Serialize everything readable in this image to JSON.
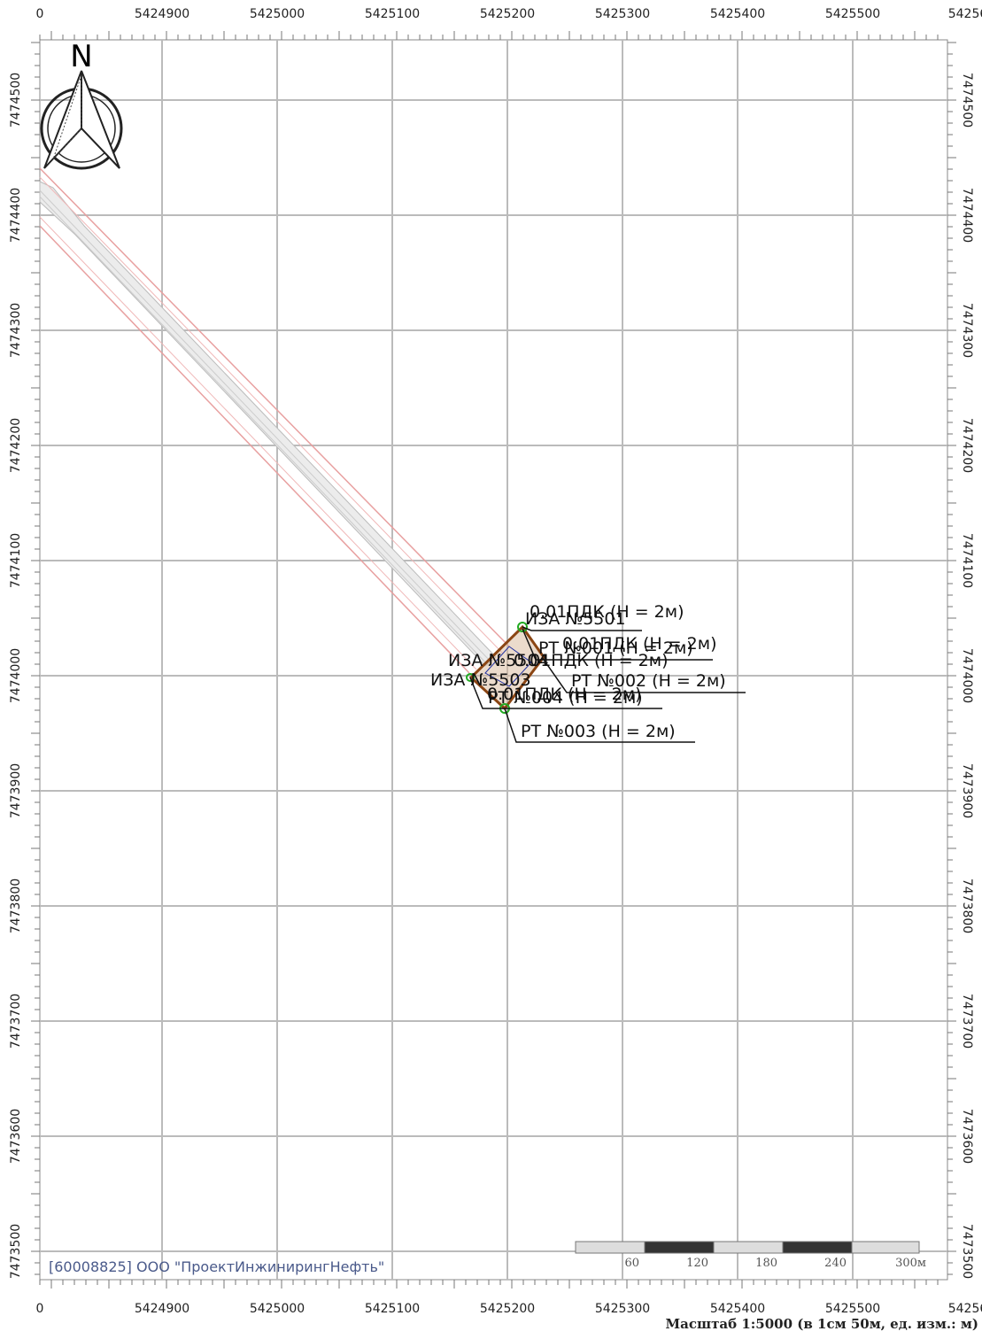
{
  "frame": {
    "x_labels_top": [
      "0",
      "5424900",
      "5425000",
      "5425100",
      "5425200",
      "5425300",
      "5425400",
      "5425500",
      "54256"
    ],
    "x_labels_bottom": [
      "0",
      "5424900",
      "5425000",
      "5425100",
      "5425200",
      "5425300",
      "5425400",
      "5425500",
      "54256"
    ],
    "y_labels_left": [
      "7474500",
      "7474400",
      "7474300",
      "7474200",
      "7474100",
      "7474000",
      "7473900",
      "7473800",
      "7473700",
      "7473600",
      "7473500"
    ],
    "y_labels_right": [
      "7474500",
      "7474400",
      "7474300",
      "7474200",
      "7474100",
      "7474000",
      "7473900",
      "7473800",
      "7473700",
      "7473600",
      "7473500"
    ]
  },
  "compass": {
    "label": "N"
  },
  "map_labels": [
    "0.01ПДК (Н = 2м)",
    "ИЗА №5501",
    "РТ №001 (Н = 2м)",
    "0.01ПДК (Н = 2м)",
    "ИЗА №5504",
    "0.01ПДК (Н = 2м)",
    "ИЗА №5503",
    "РТ №002 (Н = 2м)",
    "0.01ПДК (Н = 2м)",
    "РТ №004 (Н = 2м)",
    "РТ №003 (Н = 2м)"
  ],
  "scale_bar": {
    "labels": [
      "60",
      "120",
      "180",
      "240",
      "300м"
    ]
  },
  "footer": {
    "organization": "[60008825] ООО \"ПроектИнжинирингНефть\"",
    "scale": "Масштаб 1:5000 (в 1см 50м, ед. изм.: м)"
  }
}
